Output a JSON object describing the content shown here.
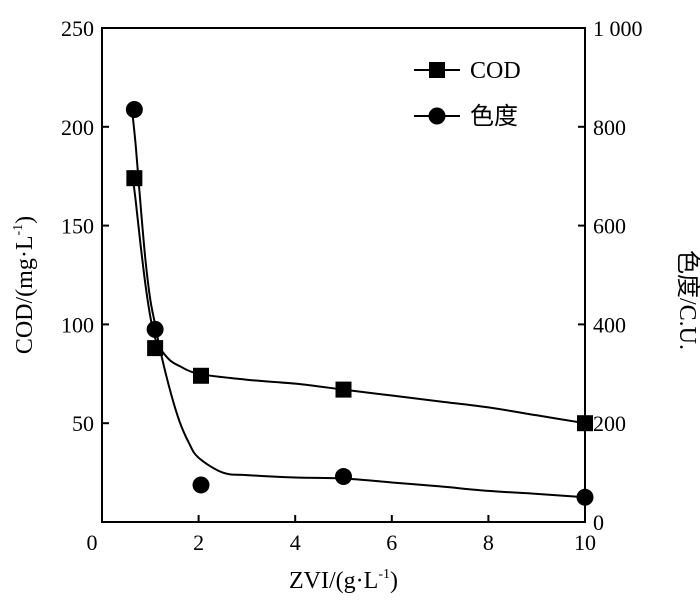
{
  "chart_data": {
    "type": "line",
    "x": [
      0.67,
      1.1,
      2.05,
      5.0,
      10.0
    ],
    "x_label_parts": {
      "main": "ZVI/(g·L",
      "sup": "-1",
      "close": ")"
    },
    "y_left_label_parts": {
      "main": "COD/(mg·L",
      "sup": "-1",
      "close": ")"
    },
    "y_right_label": "色度/C.U.",
    "xlim": [
      0,
      10
    ],
    "ylim_left": [
      0,
      250
    ],
    "ylim_right": [
      0,
      1000
    ],
    "x_ticks": [
      0,
      2,
      4,
      6,
      8,
      10
    ],
    "x_tick_labels": [
      "0",
      "2",
      "4",
      "6",
      "8",
      "10"
    ],
    "y_left_ticks": [
      50,
      100,
      150,
      200,
      250
    ],
    "y_left_tick_labels": [
      "50",
      "100",
      "150",
      "200",
      "250"
    ],
    "y_right_ticks": [
      0,
      200,
      400,
      600,
      800,
      1000
    ],
    "y_right_tick_labels": [
      "0",
      "200",
      "400",
      "600",
      "800",
      "1 000"
    ],
    "legend_position": "top-right",
    "grid": false,
    "series": [
      {
        "name": "COD",
        "axis": "left",
        "marker": "square",
        "values": [
          174,
          88,
          74,
          67,
          50
        ],
        "fit_curve": [
          [
            0.62,
            178
          ],
          [
            0.7,
            162
          ],
          [
            0.8,
            140
          ],
          [
            0.9,
            120
          ],
          [
            1.0,
            104
          ],
          [
            1.1,
            93
          ],
          [
            1.2,
            88
          ],
          [
            1.4,
            82
          ],
          [
            1.6,
            79
          ],
          [
            2.0,
            75
          ],
          [
            3.0,
            72
          ],
          [
            4.0,
            70
          ],
          [
            5.0,
            67
          ],
          [
            6.0,
            64
          ],
          [
            7.0,
            61
          ],
          [
            8.0,
            58
          ],
          [
            9.0,
            54
          ],
          [
            10.0,
            50
          ]
        ]
      },
      {
        "name": "色度",
        "axis": "right",
        "marker": "circle",
        "values": [
          835,
          390,
          75,
          92,
          50
        ],
        "fit_curve": [
          [
            0.62,
            836
          ],
          [
            0.7,
            760
          ],
          [
            0.8,
            640
          ],
          [
            0.9,
            530
          ],
          [
            1.0,
            450
          ],
          [
            1.1,
            400
          ],
          [
            1.2,
            350
          ],
          [
            1.4,
            270
          ],
          [
            1.6,
            205
          ],
          [
            1.8,
            160
          ],
          [
            2.0,
            130
          ],
          [
            2.5,
            100
          ],
          [
            3.0,
            95
          ],
          [
            4.0,
            90
          ],
          [
            5.0,
            88
          ],
          [
            6.0,
            80
          ],
          [
            7.0,
            72
          ],
          [
            8.0,
            63
          ],
          [
            9.0,
            57
          ],
          [
            10.0,
            50
          ]
        ]
      }
    ]
  }
}
